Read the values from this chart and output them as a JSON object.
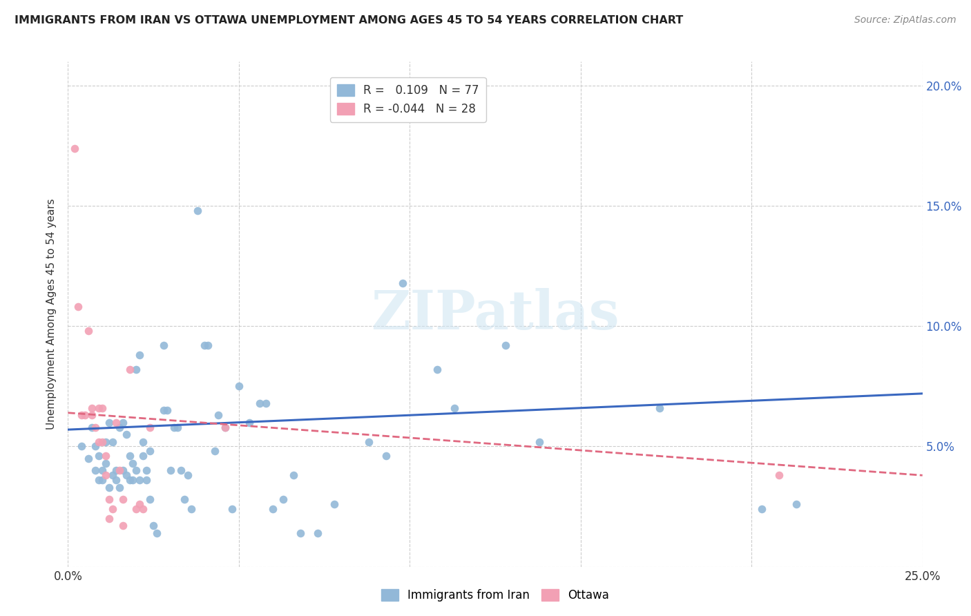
{
  "title": "IMMIGRANTS FROM IRAN VS OTTAWA UNEMPLOYMENT AMONG AGES 45 TO 54 YEARS CORRELATION CHART",
  "source": "Source: ZipAtlas.com",
  "ylabel": "Unemployment Among Ages 45 to 54 years",
  "xlim": [
    0.0,
    0.25
  ],
  "ylim": [
    0.0,
    0.21
  ],
  "xticks": [
    0.0,
    0.05,
    0.1,
    0.15,
    0.2,
    0.25
  ],
  "yticks": [
    0.0,
    0.05,
    0.1,
    0.15,
    0.2
  ],
  "xticklabels": [
    "0.0%",
    "",
    "",
    "",
    "",
    "25.0%"
  ],
  "yticklabels_right": [
    "",
    "5.0%",
    "10.0%",
    "15.0%",
    "20.0%"
  ],
  "blue_color": "#92b8d8",
  "pink_color": "#f2a0b4",
  "blue_line_color": "#3a68c0",
  "pink_line_color": "#e06880",
  "watermark": "ZIPatlas",
  "blue_scatter": [
    [
      0.004,
      0.05
    ],
    [
      0.006,
      0.045
    ],
    [
      0.007,
      0.058
    ],
    [
      0.008,
      0.04
    ],
    [
      0.008,
      0.05
    ],
    [
      0.009,
      0.036
    ],
    [
      0.009,
      0.046
    ],
    [
      0.01,
      0.036
    ],
    [
      0.01,
      0.04
    ],
    [
      0.011,
      0.052
    ],
    [
      0.011,
      0.043
    ],
    [
      0.012,
      0.033
    ],
    [
      0.012,
      0.06
    ],
    [
      0.013,
      0.038
    ],
    [
      0.013,
      0.052
    ],
    [
      0.014,
      0.036
    ],
    [
      0.014,
      0.04
    ],
    [
      0.015,
      0.058
    ],
    [
      0.015,
      0.033
    ],
    [
      0.016,
      0.04
    ],
    [
      0.016,
      0.06
    ],
    [
      0.017,
      0.038
    ],
    [
      0.017,
      0.055
    ],
    [
      0.018,
      0.036
    ],
    [
      0.018,
      0.046
    ],
    [
      0.019,
      0.043
    ],
    [
      0.019,
      0.036
    ],
    [
      0.02,
      0.04
    ],
    [
      0.02,
      0.082
    ],
    [
      0.021,
      0.088
    ],
    [
      0.021,
      0.036
    ],
    [
      0.022,
      0.052
    ],
    [
      0.022,
      0.046
    ],
    [
      0.023,
      0.04
    ],
    [
      0.023,
      0.036
    ],
    [
      0.024,
      0.048
    ],
    [
      0.024,
      0.028
    ],
    [
      0.025,
      0.017
    ],
    [
      0.026,
      0.014
    ],
    [
      0.028,
      0.092
    ],
    [
      0.028,
      0.065
    ],
    [
      0.029,
      0.065
    ],
    [
      0.03,
      0.04
    ],
    [
      0.031,
      0.058
    ],
    [
      0.032,
      0.058
    ],
    [
      0.033,
      0.04
    ],
    [
      0.034,
      0.028
    ],
    [
      0.035,
      0.038
    ],
    [
      0.036,
      0.024
    ],
    [
      0.038,
      0.148
    ],
    [
      0.04,
      0.092
    ],
    [
      0.041,
      0.092
    ],
    [
      0.043,
      0.048
    ],
    [
      0.044,
      0.063
    ],
    [
      0.046,
      0.058
    ],
    [
      0.048,
      0.024
    ],
    [
      0.05,
      0.075
    ],
    [
      0.053,
      0.06
    ],
    [
      0.056,
      0.068
    ],
    [
      0.058,
      0.068
    ],
    [
      0.06,
      0.024
    ],
    [
      0.063,
      0.028
    ],
    [
      0.066,
      0.038
    ],
    [
      0.068,
      0.014
    ],
    [
      0.073,
      0.014
    ],
    [
      0.078,
      0.026
    ],
    [
      0.088,
      0.052
    ],
    [
      0.093,
      0.046
    ],
    [
      0.098,
      0.118
    ],
    [
      0.108,
      0.082
    ],
    [
      0.113,
      0.066
    ],
    [
      0.128,
      0.092
    ],
    [
      0.138,
      0.052
    ],
    [
      0.173,
      0.066
    ],
    [
      0.203,
      0.024
    ],
    [
      0.213,
      0.026
    ]
  ],
  "pink_scatter": [
    [
      0.002,
      0.174
    ],
    [
      0.003,
      0.108
    ],
    [
      0.004,
      0.063
    ],
    [
      0.005,
      0.063
    ],
    [
      0.006,
      0.098
    ],
    [
      0.007,
      0.063
    ],
    [
      0.007,
      0.066
    ],
    [
      0.008,
      0.058
    ],
    [
      0.009,
      0.066
    ],
    [
      0.009,
      0.052
    ],
    [
      0.01,
      0.066
    ],
    [
      0.01,
      0.052
    ],
    [
      0.011,
      0.046
    ],
    [
      0.011,
      0.038
    ],
    [
      0.012,
      0.028
    ],
    [
      0.012,
      0.02
    ],
    [
      0.013,
      0.024
    ],
    [
      0.014,
      0.06
    ],
    [
      0.015,
      0.04
    ],
    [
      0.016,
      0.028
    ],
    [
      0.016,
      0.017
    ],
    [
      0.018,
      0.082
    ],
    [
      0.02,
      0.024
    ],
    [
      0.021,
      0.026
    ],
    [
      0.022,
      0.024
    ],
    [
      0.024,
      0.058
    ],
    [
      0.046,
      0.058
    ],
    [
      0.208,
      0.038
    ]
  ],
  "blue_trendline": [
    [
      0.0,
      0.057
    ],
    [
      0.25,
      0.072
    ]
  ],
  "pink_trendline": [
    [
      0.0,
      0.064
    ],
    [
      0.25,
      0.038
    ]
  ]
}
